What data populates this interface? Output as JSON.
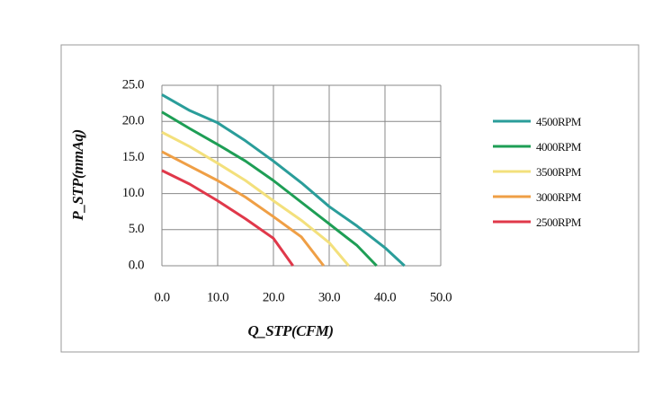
{
  "chart_data": {
    "type": "line",
    "x_label": "Q_STP(CFM)",
    "y_label": "P_STP(mmAq)",
    "xlim": [
      0,
      50
    ],
    "ylim": [
      0,
      25
    ],
    "xticks": [
      {
        "value": 0,
        "label": "0.0"
      },
      {
        "value": 10,
        "label": "10.0"
      },
      {
        "value": 20,
        "label": "20.0"
      },
      {
        "value": 30,
        "label": "30.0"
      },
      {
        "value": 40,
        "label": "40.0"
      },
      {
        "value": 50,
        "label": "50.0"
      }
    ],
    "yticks": [
      {
        "value": 0,
        "label": "0.0"
      },
      {
        "value": 5,
        "label": "5.0"
      },
      {
        "value": 10,
        "label": "10.0"
      },
      {
        "value": 15,
        "label": "15.0"
      },
      {
        "value": 20,
        "label": "20.0"
      },
      {
        "value": 25,
        "label": "25.0"
      }
    ],
    "grid": true,
    "legend": "right",
    "series": [
      {
        "name": "4500RPM",
        "color": "#2a9d9a",
        "x": [
          0,
          5,
          10,
          15,
          20,
          25,
          30,
          35,
          40,
          43.5
        ],
        "values": [
          23.7,
          21.5,
          19.8,
          17.3,
          14.5,
          11.5,
          8.2,
          5.5,
          2.5,
          0
        ]
      },
      {
        "name": "4000RPM",
        "color": "#1e9e55",
        "x": [
          0,
          5,
          10,
          15,
          20,
          25,
          30,
          35,
          38.5
        ],
        "values": [
          21.3,
          19,
          16.8,
          14.5,
          11.8,
          8.8,
          5.8,
          2.8,
          0
        ]
      },
      {
        "name": "3500RPM",
        "color": "#f3e07c",
        "x": [
          0,
          5,
          10,
          15,
          20,
          25,
          30,
          33.5
        ],
        "values": [
          18.5,
          16.5,
          14.2,
          11.8,
          9,
          6.3,
          3.2,
          0
        ]
      },
      {
        "name": "3000RPM",
        "color": "#ef9f45",
        "x": [
          0,
          5,
          10,
          15,
          20,
          25,
          29
        ],
        "values": [
          15.8,
          13.8,
          11.8,
          9.5,
          6.8,
          4,
          0
        ]
      },
      {
        "name": "2500RPM",
        "color": "#e0384a",
        "x": [
          0,
          5,
          10,
          15,
          20,
          23.5
        ],
        "values": [
          13.2,
          11.3,
          9,
          6.5,
          3.8,
          0
        ]
      }
    ]
  }
}
